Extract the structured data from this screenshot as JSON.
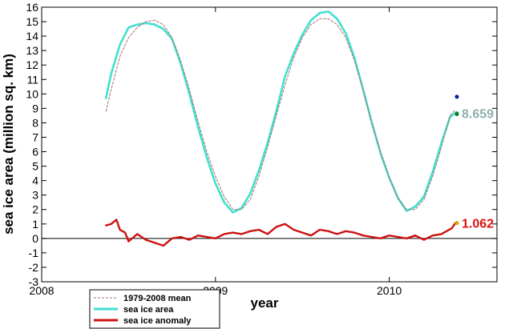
{
  "chart_data": {
    "type": "line",
    "xlabel": "year",
    "ylabel": "sea ice area (million sq. km)",
    "xlim": [
      2008,
      2010.62
    ],
    "ylim": [
      -3,
      16
    ],
    "x_ticks": [
      2008,
      2009,
      2010
    ],
    "x_tick_labels": [
      "2008",
      "2009",
      "2010"
    ],
    "y_ticks": [
      -3,
      -2,
      -1,
      0,
      1,
      2,
      3,
      4,
      5,
      6,
      7,
      8,
      9,
      10,
      11,
      12,
      13,
      14,
      15,
      16
    ],
    "y_tick_labels": [
      "-3",
      "-2",
      "-1",
      "0",
      "1",
      "2",
      "3",
      "4",
      "5",
      "6",
      "7",
      "8",
      "9",
      "10",
      "11",
      "12",
      "13",
      "14",
      "15",
      "16"
    ],
    "series": [
      {
        "name": "1979-2008 mean",
        "color": "#b07070",
        "x": [
          2008.37,
          2008.4,
          2008.45,
          2008.5,
          2008.55,
          2008.6,
          2008.65,
          2008.7,
          2008.75,
          2008.8,
          2008.85,
          2008.9,
          2008.95,
          2009.0,
          2009.05,
          2009.1,
          2009.15,
          2009.2,
          2009.25,
          2009.3,
          2009.35,
          2009.4,
          2009.45,
          2009.5,
          2009.55,
          2009.6,
          2009.65,
          2009.7,
          2009.75,
          2009.8,
          2009.85,
          2009.9,
          2009.95,
          2010.0,
          2010.05,
          2010.1,
          2010.15,
          2010.2,
          2010.25,
          2010.3,
          2010.35,
          2010.38
        ],
        "values": [
          8.8,
          10.3,
          12.6,
          13.9,
          14.6,
          15.0,
          15.1,
          14.8,
          13.9,
          12.3,
          10.3,
          8.1,
          6.0,
          4.3,
          2.9,
          2.0,
          2.0,
          2.7,
          4.3,
          6.3,
          8.5,
          10.6,
          12.5,
          13.9,
          14.8,
          15.2,
          15.2,
          14.8,
          13.9,
          12.3,
          10.2,
          8.0,
          6.0,
          4.2,
          2.8,
          2.0,
          2.0,
          2.7,
          4.3,
          6.3,
          8.5,
          8.9
        ]
      },
      {
        "name": "sea ice area",
        "color": "#40e0d0",
        "x": [
          2008.37,
          2008.4,
          2008.45,
          2008.5,
          2008.55,
          2008.6,
          2008.65,
          2008.7,
          2008.75,
          2008.8,
          2008.85,
          2008.9,
          2008.95,
          2009.0,
          2009.05,
          2009.1,
          2009.15,
          2009.2,
          2009.25,
          2009.3,
          2009.35,
          2009.4,
          2009.45,
          2009.5,
          2009.55,
          2009.6,
          2009.65,
          2009.7,
          2009.75,
          2009.8,
          2009.85,
          2009.9,
          2009.95,
          2010.0,
          2010.05,
          2010.1,
          2010.15,
          2010.2,
          2010.25,
          2010.3,
          2010.35,
          2010.38
        ],
        "values": [
          9.7,
          11.4,
          13.4,
          14.6,
          14.8,
          14.9,
          14.8,
          14.5,
          13.8,
          12.1,
          10.0,
          7.7,
          5.6,
          3.8,
          2.5,
          1.8,
          2.1,
          3.1,
          4.7,
          6.6,
          8.8,
          11.2,
          12.8,
          14.1,
          15.1,
          15.6,
          15.7,
          15.2,
          14.2,
          12.5,
          10.3,
          8.0,
          5.9,
          4.2,
          2.8,
          1.9,
          2.2,
          2.9,
          4.6,
          6.6,
          8.4,
          8.659
        ]
      },
      {
        "name": "sea ice anomaly",
        "color": "#cc1111",
        "x": [
          2008.37,
          2008.4,
          2008.43,
          2008.45,
          2008.48,
          2008.5,
          2008.55,
          2008.6,
          2008.65,
          2008.7,
          2008.75,
          2008.8,
          2008.85,
          2008.9,
          2008.95,
          2009.0,
          2009.05,
          2009.1,
          2009.15,
          2009.2,
          2009.25,
          2009.3,
          2009.35,
          2009.4,
          2009.45,
          2009.5,
          2009.55,
          2009.6,
          2009.65,
          2009.7,
          2009.75,
          2009.8,
          2009.85,
          2009.9,
          2009.95,
          2010.0,
          2010.05,
          2010.1,
          2010.15,
          2010.2,
          2010.25,
          2010.3,
          2010.33,
          2010.36,
          2010.38
        ],
        "values": [
          0.9,
          1.0,
          1.3,
          0.6,
          0.4,
          -0.2,
          0.3,
          -0.1,
          -0.3,
          -0.5,
          0.0,
          0.1,
          -0.1,
          0.2,
          0.1,
          0.0,
          0.3,
          0.4,
          0.3,
          0.5,
          0.6,
          0.3,
          0.8,
          1.0,
          0.6,
          0.4,
          0.2,
          0.6,
          0.5,
          0.3,
          0.5,
          0.4,
          0.2,
          0.1,
          0.0,
          0.2,
          0.1,
          0.0,
          0.2,
          -0.1,
          0.2,
          0.3,
          0.5,
          0.7,
          1.062
        ]
      }
    ],
    "end_labels": [
      {
        "text": "8.659",
        "value": 8.659,
        "color": "#8fb0b0"
      },
      {
        "text": "1.062",
        "value": 1.062,
        "color": "#dd1111"
      }
    ],
    "end_markers": [
      {
        "value": 9.8,
        "color": "#1020a0"
      },
      {
        "value": 8.659,
        "color": "#00c0b0"
      },
      {
        "value": 8.6,
        "color": "#1a7a1a"
      },
      {
        "value": 1.062,
        "color": "#e0a000"
      }
    ],
    "legend": [
      "1979-2008 mean",
      "sea ice area",
      "sea ice anomaly"
    ],
    "legend_position": "bottom-left",
    "grid": false,
    "zero_line": true
  }
}
